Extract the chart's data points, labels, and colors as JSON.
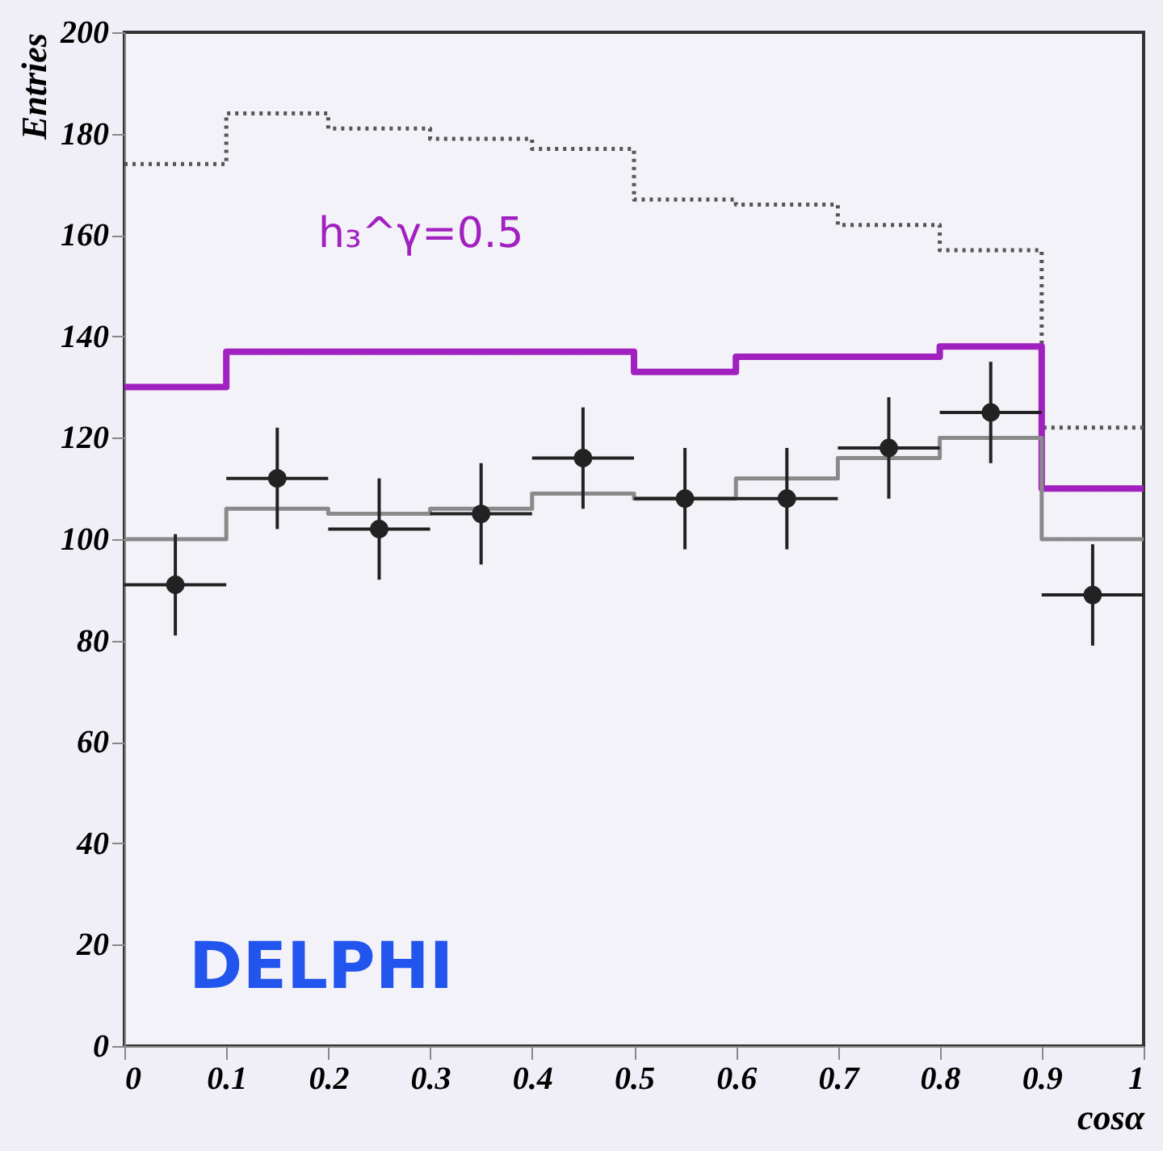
{
  "chart_data": {
    "type": "histogram",
    "xlabel": "cosα",
    "ylabel": "Entries",
    "bins": [
      0,
      0.1,
      0.2,
      0.3,
      0.4,
      0.5,
      0.6,
      0.7,
      0.8,
      0.9,
      1
    ],
    "xlim": [
      0,
      1
    ],
    "xticks": [
      0,
      0.1,
      0.2,
      0.3,
      0.4,
      0.5,
      0.6,
      0.7,
      0.8,
      0.9,
      1
    ],
    "ylim": [
      0,
      200
    ],
    "yticks": [
      0,
      20,
      40,
      60,
      80,
      100,
      120,
      140,
      160,
      180,
      200
    ],
    "grid": false,
    "series": [
      {
        "color": "#555555",
        "line_style": "dotted",
        "values": [
          174,
          184,
          181,
          179,
          177,
          167,
          166,
          162,
          157,
          122
        ]
      },
      {
        "name": "h₃^γ=0.5",
        "color": "#a020c0",
        "line_style": "solid",
        "values": [
          130,
          137,
          137,
          137,
          137,
          133,
          136,
          136,
          138,
          110
        ]
      },
      {
        "color": "#8a8a8a",
        "line_style": "solid",
        "values": [
          100,
          106,
          105,
          106,
          109,
          108,
          112,
          116,
          120,
          100
        ]
      },
      {
        "type": "scatter",
        "color": "#222222",
        "marker": "circle",
        "x": [
          0.05,
          0.15,
          0.25,
          0.35,
          0.45,
          0.55,
          0.65,
          0.75,
          0.85,
          0.95
        ],
        "values": [
          91,
          112,
          102,
          105,
          116,
          108,
          108,
          118,
          125,
          89
        ],
        "errors": [
          10,
          10,
          10,
          10,
          10,
          10,
          10,
          10,
          10,
          10
        ],
        "xerrors": [
          0.05,
          0.05,
          0.05,
          0.05,
          0.05,
          0.05,
          0.05,
          0.05,
          0.05,
          0.05
        ]
      }
    ],
    "annotations": [
      "DELPHI"
    ]
  }
}
